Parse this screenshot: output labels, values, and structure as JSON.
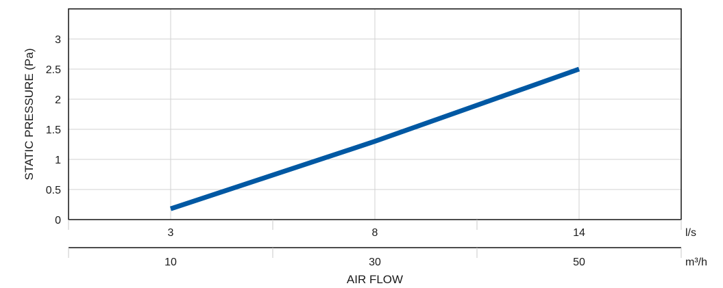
{
  "chart_data": {
    "type": "line",
    "title": "",
    "ylabel": "STATIC PRESSURE (Pa)",
    "xlabel": "AIR FLOW",
    "ylim": [
      0,
      3.5
    ],
    "yticks": [
      "0",
      "0.5",
      "1",
      "1.5",
      "2",
      "2.5",
      "3"
    ],
    "grid": true,
    "x_axis_primary": {
      "unit": "l/s",
      "tick_values": [
        3,
        8,
        14
      ],
      "tick_labels": [
        "3",
        "8",
        "14"
      ]
    },
    "x_axis_secondary": {
      "unit": "m³/h",
      "tick_labels": [
        "10",
        "30",
        "50"
      ]
    },
    "series": [
      {
        "color": "#0058a3",
        "points": [
          {
            "x": 3,
            "y": 0.18
          },
          {
            "x": 8,
            "y": 1.3
          },
          {
            "x": 14,
            "y": 2.5
          }
        ]
      }
    ]
  }
}
